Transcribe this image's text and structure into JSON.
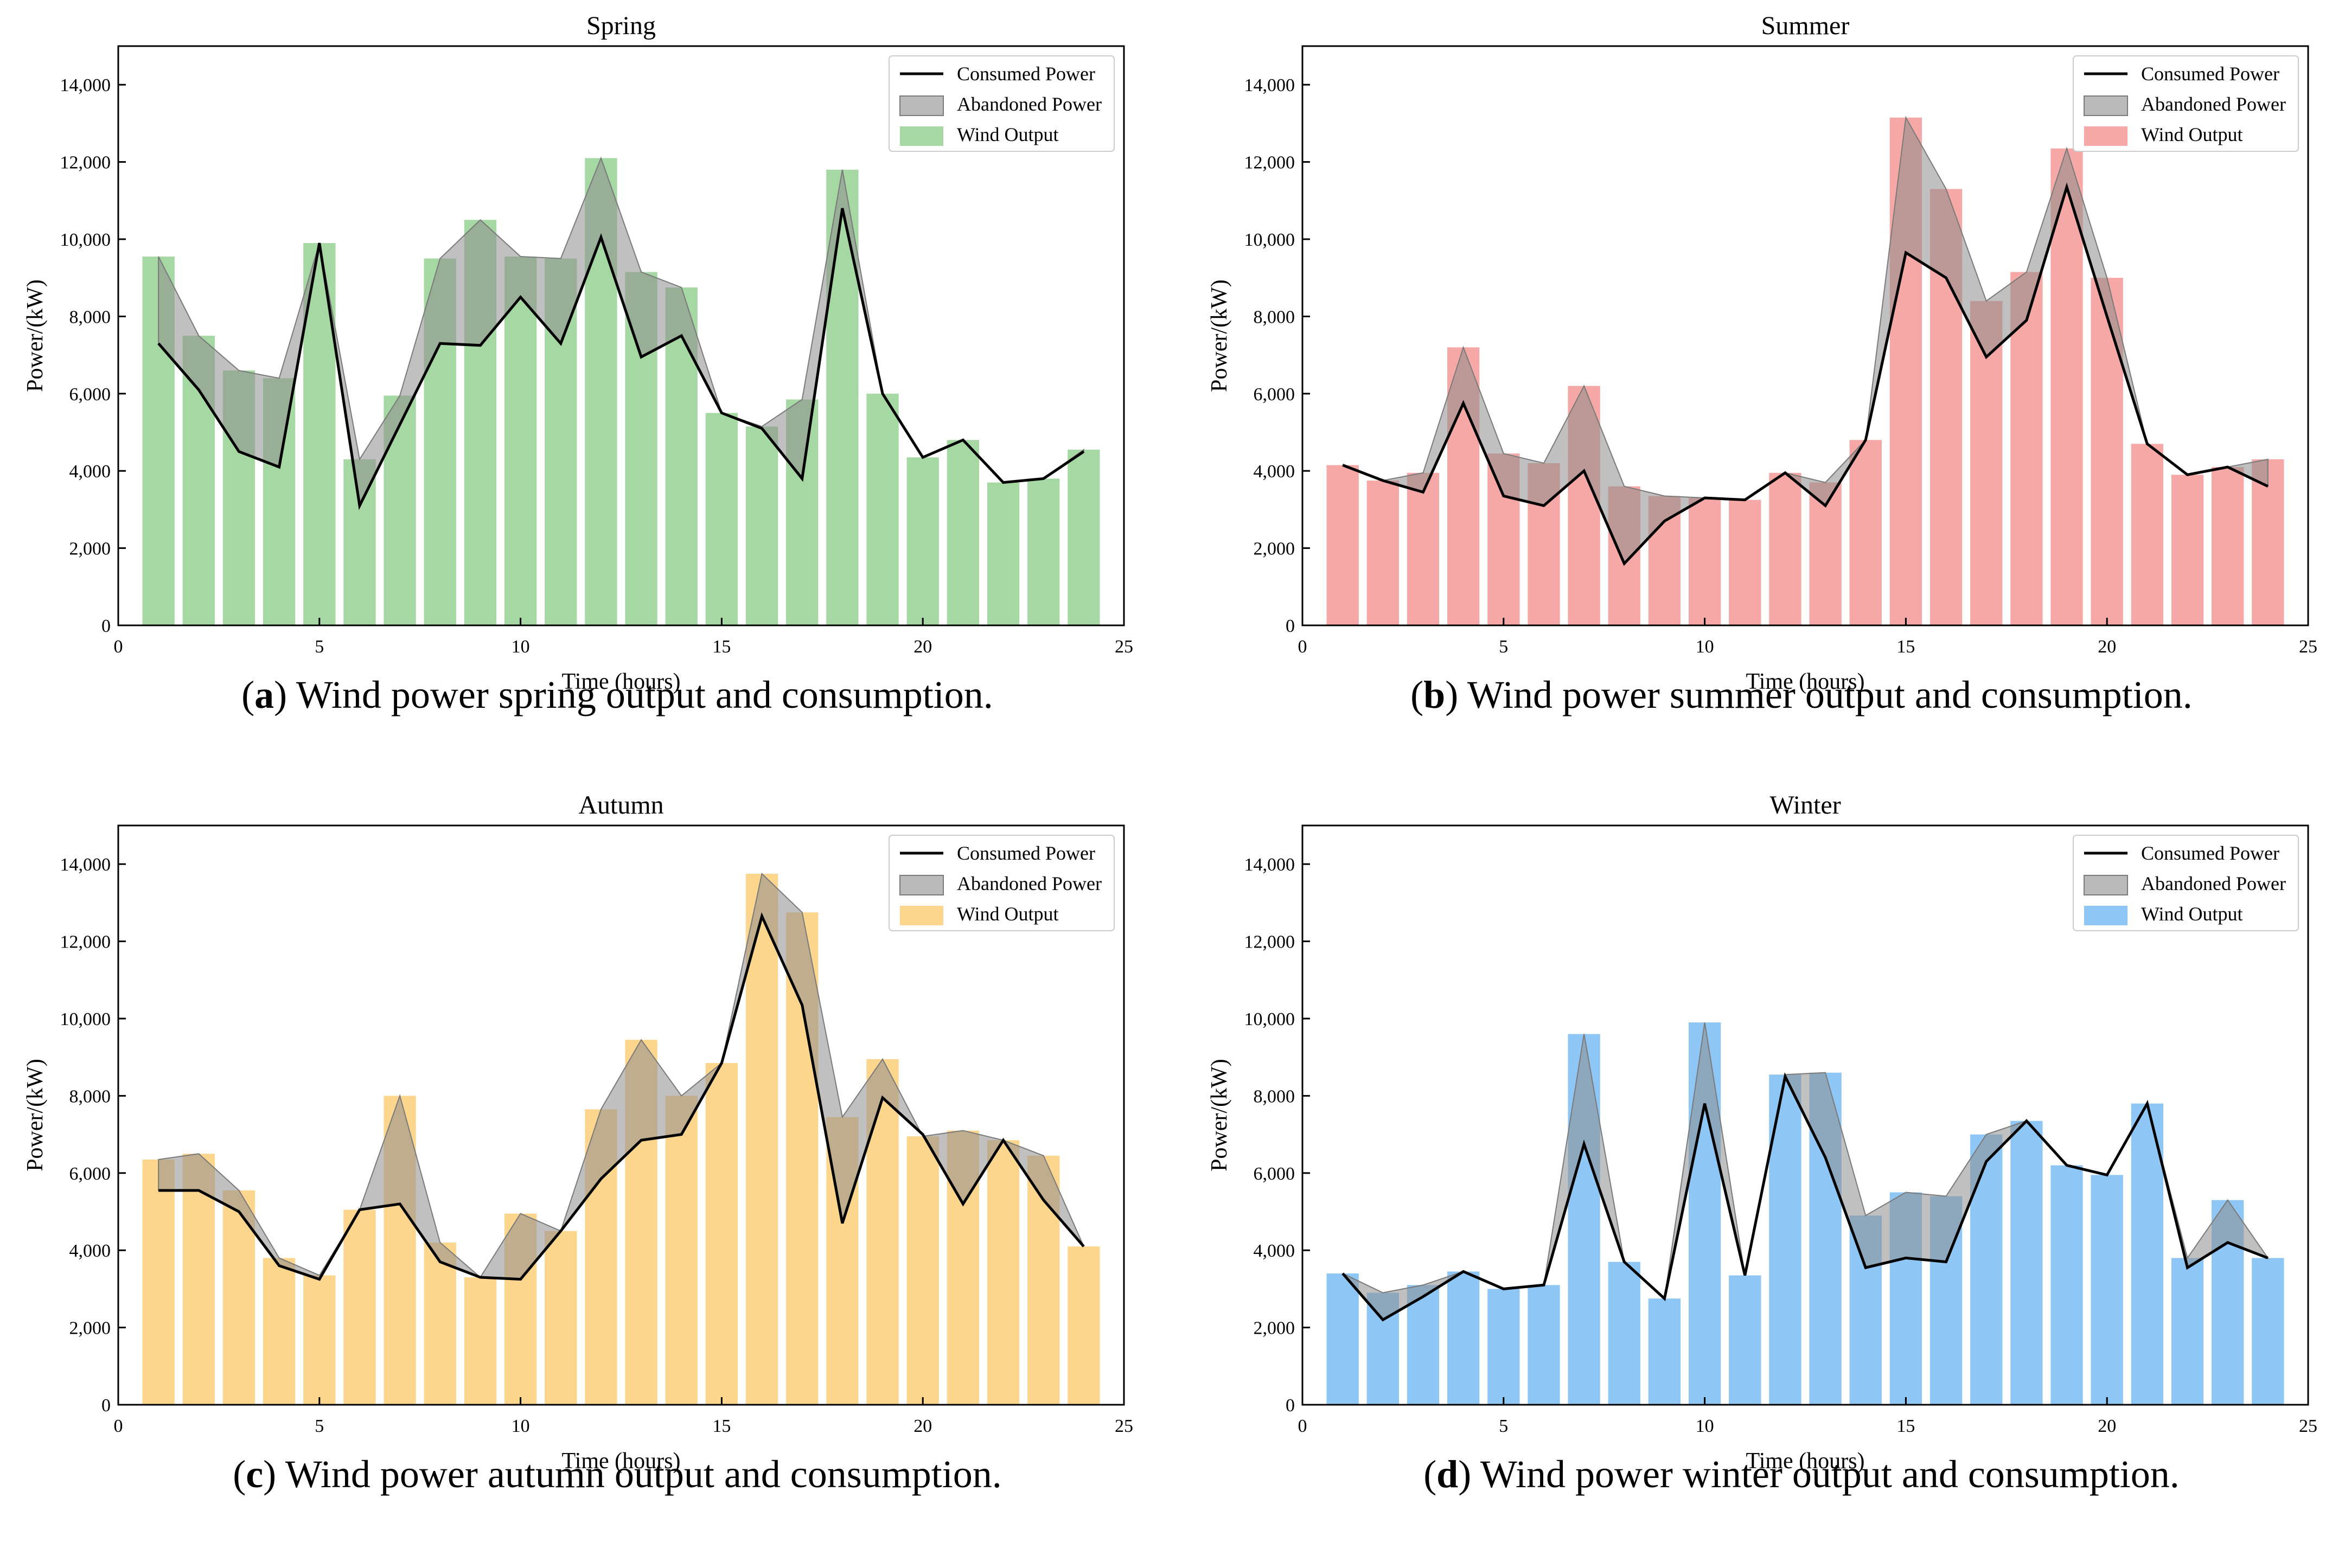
{
  "chart_data": [
    {
      "type": "bar",
      "title": "Spring",
      "caption": {
        "letter": "a",
        "text": " Wind power spring output and consumption."
      },
      "xlabel": "Time (hours)",
      "ylabel": "Power/(kW)",
      "xlim": [
        0,
        25
      ],
      "ylim": [
        0,
        15000
      ],
      "xticks": [
        0,
        5,
        10,
        15,
        20,
        25
      ],
      "yticks": [
        0,
        2000,
        4000,
        6000,
        8000,
        10000,
        12000,
        14000
      ],
      "ytick_labels": [
        "0",
        "2,000",
        "4,000",
        "6,000",
        "8,000",
        "10,000",
        "12,000",
        "14,000"
      ],
      "legend_position": "top-right",
      "grid": false,
      "x": [
        1,
        2,
        3,
        4,
        5,
        6,
        7,
        8,
        9,
        10,
        11,
        12,
        13,
        14,
        15,
        16,
        17,
        18,
        19,
        20,
        21,
        22,
        23,
        24
      ],
      "series": [
        {
          "name": "Consumed Power",
          "type": "line",
          "color": "#000000",
          "values": [
            7300,
            6100,
            4500,
            4100,
            9900,
            3100,
            5200,
            7300,
            7250,
            8500,
            7300,
            10050,
            6950,
            7500,
            5500,
            5100,
            3800,
            10800,
            6000,
            4350,
            4800,
            3700,
            3800,
            4500
          ]
        },
        {
          "name": "Abandoned Power",
          "type": "area",
          "color": "#8c8c8c"
        },
        {
          "name": "Wind Output",
          "type": "bar",
          "color": "#a6d8a4",
          "values": [
            9550,
            7500,
            6600,
            6400,
            9900,
            4300,
            5950,
            9500,
            10500,
            9550,
            9500,
            12100,
            9150,
            8750,
            5500,
            5150,
            5850,
            11800,
            6000,
            4350,
            4800,
            3700,
            3800,
            4550
          ]
        }
      ]
    },
    {
      "type": "bar",
      "title": "Summer",
      "caption": {
        "letter": "b",
        "text": " Wind power summer output and consumption."
      },
      "xlabel": "Time (hours)",
      "ylabel": "Power/(kW)",
      "xlim": [
        0,
        25
      ],
      "ylim": [
        0,
        15000
      ],
      "xticks": [
        0,
        5,
        10,
        15,
        20,
        25
      ],
      "yticks": [
        0,
        2000,
        4000,
        6000,
        8000,
        10000,
        12000,
        14000
      ],
      "ytick_labels": [
        "0",
        "2,000",
        "4,000",
        "6,000",
        "8,000",
        "10,000",
        "12,000",
        "14,000"
      ],
      "legend_position": "top-right",
      "grid": false,
      "x": [
        1,
        2,
        3,
        4,
        5,
        6,
        7,
        8,
        9,
        10,
        11,
        12,
        13,
        14,
        15,
        16,
        17,
        18,
        19,
        20,
        21,
        22,
        23,
        24
      ],
      "series": [
        {
          "name": "Consumed Power",
          "type": "line",
          "color": "#000000",
          "values": [
            4150,
            3750,
            3450,
            5750,
            3350,
            3100,
            4000,
            1600,
            2700,
            3300,
            3250,
            3950,
            3100,
            4800,
            9650,
            9000,
            6950,
            7900,
            11350,
            8000,
            4700,
            3900,
            4100,
            3600
          ]
        },
        {
          "name": "Abandoned Power",
          "type": "area",
          "color": "#8c8c8c"
        },
        {
          "name": "Wind Output",
          "type": "bar",
          "color": "#f5a8a5",
          "values": [
            4150,
            3750,
            3950,
            7200,
            4450,
            4200,
            6200,
            3600,
            3350,
            3300,
            3250,
            3950,
            3700,
            4800,
            13150,
            11300,
            8400,
            9150,
            12350,
            9000,
            4700,
            3900,
            4100,
            4300
          ]
        }
      ]
    },
    {
      "type": "bar",
      "title": "Autumn",
      "caption": {
        "letter": "c",
        "text": " Wind power autumn output and consumption."
      },
      "xlabel": "Time (hours)",
      "ylabel": "Power/(kW)",
      "xlim": [
        0,
        25
      ],
      "ylim": [
        0,
        15000
      ],
      "xticks": [
        0,
        5,
        10,
        15,
        20,
        25
      ],
      "yticks": [
        0,
        2000,
        4000,
        6000,
        8000,
        10000,
        12000,
        14000
      ],
      "ytick_labels": [
        "0",
        "2,000",
        "4,000",
        "6,000",
        "8,000",
        "10,000",
        "12,000",
        "14,000"
      ],
      "legend_position": "top-right",
      "grid": false,
      "x": [
        1,
        2,
        3,
        4,
        5,
        6,
        7,
        8,
        9,
        10,
        11,
        12,
        13,
        14,
        15,
        16,
        17,
        18,
        19,
        20,
        21,
        22,
        23,
        24
      ],
      "series": [
        {
          "name": "Consumed Power",
          "type": "line",
          "color": "#000000",
          "values": [
            5550,
            5550,
            5000,
            3600,
            3250,
            5050,
            5200,
            3700,
            3300,
            3250,
            4500,
            5850,
            6850,
            7000,
            8850,
            12650,
            10350,
            4700,
            7950,
            7000,
            5200,
            6850,
            5300,
            4100
          ]
        },
        {
          "name": "Abandoned Power",
          "type": "area",
          "color": "#8c8c8c"
        },
        {
          "name": "Wind Output",
          "type": "bar",
          "color": "#fdd68e",
          "values": [
            6350,
            6500,
            5550,
            3800,
            3350,
            5050,
            8000,
            4200,
            3300,
            4950,
            4500,
            7650,
            9450,
            8000,
            8850,
            13750,
            12750,
            7450,
            8950,
            6950,
            7100,
            6850,
            6450,
            4100
          ]
        }
      ]
    },
    {
      "type": "bar",
      "title": "Winter",
      "caption": {
        "letter": "d",
        "text": " Wind power winter output and consumption."
      },
      "xlabel": "Time (hours)",
      "ylabel": "Power/(kW)",
      "xlim": [
        0,
        25
      ],
      "ylim": [
        0,
        15000
      ],
      "xticks": [
        0,
        5,
        10,
        15,
        20,
        25
      ],
      "yticks": [
        0,
        2000,
        4000,
        6000,
        8000,
        10000,
        12000,
        14000
      ],
      "ytick_labels": [
        "0",
        "2,000",
        "4,000",
        "6,000",
        "8,000",
        "10,000",
        "12,000",
        "14,000"
      ],
      "legend_position": "top-right",
      "grid": false,
      "x": [
        1,
        2,
        3,
        4,
        5,
        6,
        7,
        8,
        9,
        10,
        11,
        12,
        13,
        14,
        15,
        16,
        17,
        18,
        19,
        20,
        21,
        22,
        23,
        24
      ],
      "series": [
        {
          "name": "Consumed Power",
          "type": "line",
          "color": "#000000",
          "values": [
            3400,
            2200,
            2800,
            3450,
            3000,
            3100,
            6750,
            3700,
            2750,
            7800,
            3350,
            8500,
            6400,
            3550,
            3800,
            3700,
            6300,
            7350,
            6200,
            5950,
            7800,
            3550,
            4200,
            3800
          ]
        },
        {
          "name": "Abandoned Power",
          "type": "area",
          "color": "#8c8c8c"
        },
        {
          "name": "Wind Output",
          "type": "bar",
          "color": "#8ec7f5",
          "values": [
            3400,
            2900,
            3100,
            3450,
            3000,
            3100,
            9600,
            3700,
            2750,
            9900,
            3350,
            8550,
            8600,
            4900,
            5500,
            5400,
            7000,
            7350,
            6200,
            5950,
            7800,
            3800,
            5300,
            3800
          ]
        }
      ]
    }
  ]
}
